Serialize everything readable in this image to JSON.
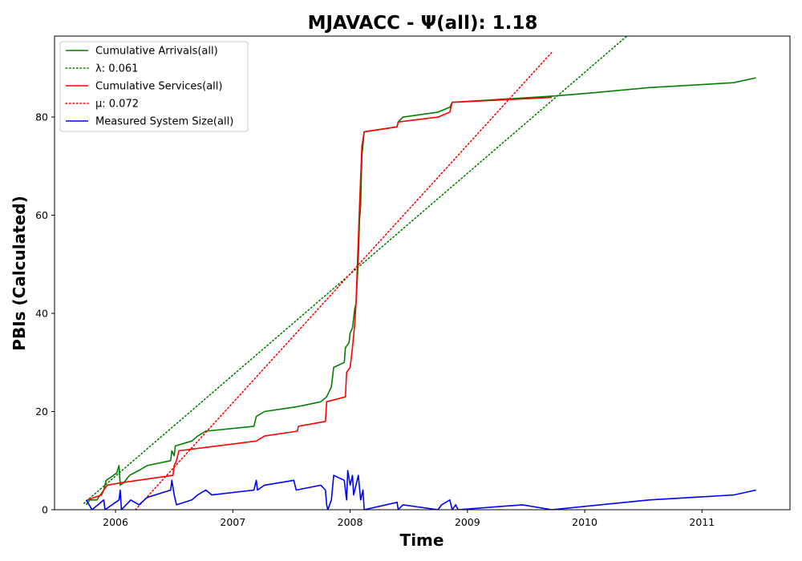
{
  "chart_data": {
    "type": "line",
    "title": "MJAVACC -  Ψ(all): 1.18",
    "xlabel": "Time",
    "ylabel": "PBIs (Calculated)",
    "xlim": [
      2005.48,
      2011.75
    ],
    "ylim": [
      0,
      96.5
    ],
    "xticks": [
      2006,
      2007,
      2008,
      2009,
      2010,
      2011
    ],
    "yticks": [
      0,
      20,
      40,
      60,
      80
    ],
    "grid": false,
    "legend_position": "top-left",
    "series": [
      {
        "name": "Cumulative Arrivals(all)",
        "style": "solid",
        "color": "#008000",
        "points": [
          [
            2005.75,
            1
          ],
          [
            2005.78,
            2
          ],
          [
            2005.84,
            2
          ],
          [
            2005.9,
            4
          ],
          [
            2005.92,
            6
          ],
          [
            2005.97,
            6.8
          ],
          [
            2006.01,
            7.5
          ],
          [
            2006.03,
            9
          ],
          [
            2006.04,
            5
          ],
          [
            2006.07,
            5.5
          ],
          [
            2006.12,
            7
          ],
          [
            2006.2,
            8
          ],
          [
            2006.27,
            9
          ],
          [
            2006.47,
            10
          ],
          [
            2006.48,
            12
          ],
          [
            2006.5,
            11
          ],
          [
            2006.51,
            13
          ],
          [
            2006.65,
            14
          ],
          [
            2006.7,
            15
          ],
          [
            2006.77,
            16
          ],
          [
            2007.18,
            17
          ],
          [
            2007.2,
            19
          ],
          [
            2007.27,
            20
          ],
          [
            2007.55,
            21
          ],
          [
            2007.75,
            22
          ],
          [
            2007.8,
            23
          ],
          [
            2007.82,
            24
          ],
          [
            2007.84,
            25
          ],
          [
            2007.86,
            29
          ],
          [
            2007.95,
            30
          ],
          [
            2007.96,
            33
          ],
          [
            2007.99,
            34
          ],
          [
            2008.0,
            36
          ],
          [
            2008.02,
            37
          ],
          [
            2008.04,
            41
          ],
          [
            2008.05,
            42
          ],
          [
            2008.07,
            51
          ],
          [
            2008.08,
            59
          ],
          [
            2008.09,
            62
          ],
          [
            2008.1,
            72
          ],
          [
            2008.12,
            77
          ],
          [
            2008.4,
            78
          ],
          [
            2008.41,
            79
          ],
          [
            2008.45,
            80
          ],
          [
            2008.75,
            81
          ],
          [
            2008.85,
            82
          ],
          [
            2008.87,
            83
          ],
          [
            2009.75,
            84.3
          ],
          [
            2010.1,
            85
          ],
          [
            2010.55,
            86
          ],
          [
            2011.27,
            87
          ],
          [
            2011.46,
            88
          ]
        ]
      },
      {
        "name": "λ: 0.061",
        "style": "dotted",
        "color": "#008000",
        "points": [
          [
            2005.73,
            1.3
          ],
          [
            2010.36,
            96.5
          ]
        ]
      },
      {
        "name": "Cumulative Services(all)",
        "style": "solid",
        "color": "#ff0000",
        "points": [
          [
            2005.76,
            2
          ],
          [
            2005.88,
            3
          ],
          [
            2005.9,
            4
          ],
          [
            2005.93,
            5
          ],
          [
            2006.05,
            5.5
          ],
          [
            2006.49,
            7
          ],
          [
            2006.5,
            9
          ],
          [
            2006.52,
            10
          ],
          [
            2006.54,
            12
          ],
          [
            2007.2,
            14
          ],
          [
            2007.27,
            15
          ],
          [
            2007.55,
            16
          ],
          [
            2007.56,
            17
          ],
          [
            2007.79,
            18
          ],
          [
            2007.8,
            22
          ],
          [
            2007.96,
            23
          ],
          [
            2007.97,
            28
          ],
          [
            2008.0,
            29
          ],
          [
            2008.02,
            33
          ],
          [
            2008.04,
            38
          ],
          [
            2008.05,
            42
          ],
          [
            2008.08,
            62
          ],
          [
            2008.1,
            74
          ],
          [
            2008.12,
            77
          ],
          [
            2008.4,
            78
          ],
          [
            2008.41,
            79
          ],
          [
            2008.75,
            80
          ],
          [
            2008.85,
            81
          ],
          [
            2008.87,
            83
          ],
          [
            2009.72,
            84
          ]
        ]
      },
      {
        "name": "μ: 0.072",
        "style": "dotted",
        "color": "#ff0000",
        "points": [
          [
            2006.17,
            0
          ],
          [
            2009.72,
            93.2
          ]
        ]
      },
      {
        "name": "Measured System Size(all)",
        "style": "solid",
        "color": "#0000ff",
        "points": [
          [
            2005.75,
            2
          ],
          [
            2005.8,
            0
          ],
          [
            2005.9,
            2
          ],
          [
            2005.91,
            0
          ],
          [
            2006.03,
            2
          ],
          [
            2006.04,
            4
          ],
          [
            2006.05,
            0
          ],
          [
            2006.13,
            2
          ],
          [
            2006.2,
            1
          ],
          [
            2006.27,
            2.5
          ],
          [
            2006.47,
            4
          ],
          [
            2006.48,
            6
          ],
          [
            2006.5,
            3
          ],
          [
            2006.52,
            1
          ],
          [
            2006.65,
            2
          ],
          [
            2006.7,
            3
          ],
          [
            2006.77,
            4
          ],
          [
            2006.82,
            3
          ],
          [
            2007.18,
            4
          ],
          [
            2007.2,
            6
          ],
          [
            2007.21,
            4
          ],
          [
            2007.27,
            5
          ],
          [
            2007.52,
            6
          ],
          [
            2007.54,
            4
          ],
          [
            2007.75,
            5
          ],
          [
            2007.79,
            4
          ],
          [
            2007.8,
            1
          ],
          [
            2007.81,
            0
          ],
          [
            2007.84,
            2
          ],
          [
            2007.86,
            7
          ],
          [
            2007.95,
            6
          ],
          [
            2007.97,
            2
          ],
          [
            2007.98,
            8
          ],
          [
            2008.0,
            5
          ],
          [
            2008.02,
            7
          ],
          [
            2008.03,
            3
          ],
          [
            2008.05,
            5
          ],
          [
            2008.07,
            7
          ],
          [
            2008.09,
            2
          ],
          [
            2008.11,
            4
          ],
          [
            2008.12,
            0
          ],
          [
            2008.4,
            1.5
          ],
          [
            2008.41,
            0
          ],
          [
            2008.45,
            1
          ],
          [
            2008.75,
            0
          ],
          [
            2008.78,
            1
          ],
          [
            2008.85,
            2
          ],
          [
            2008.87,
            0
          ],
          [
            2008.9,
            1
          ],
          [
            2008.92,
            0
          ],
          [
            2009.47,
            1
          ],
          [
            2009.72,
            0
          ],
          [
            2010.55,
            2
          ],
          [
            2011.27,
            3
          ],
          [
            2011.46,
            4
          ]
        ]
      }
    ]
  }
}
